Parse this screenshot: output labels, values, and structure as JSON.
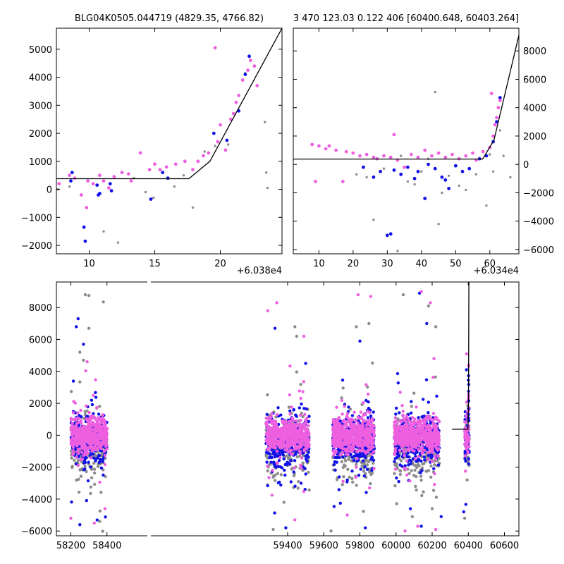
{
  "chart_data": [
    {
      "type": "scatter",
      "title": "BLG04K0505.044719 (4829.35, 4766.82)",
      "x_offset_label": "+6.038e4",
      "xlim": [
        7.5,
        24.7
      ],
      "ylim": [
        -2300,
        5750
      ],
      "xticks": [
        10,
        15,
        20
      ],
      "yticks": [
        -2000,
        -1000,
        0,
        1000,
        2000,
        3000,
        4000,
        5000
      ],
      "colors": {
        "magenta": "#ee5fe0",
        "blue": "#1010e8",
        "gray": "#8c8c8c",
        "line": "#000000"
      },
      "model_line": {
        "x": [
          7.5,
          17.6,
          19.2,
          24.7
        ],
        "y": [
          380,
          380,
          1000,
          5750
        ]
      },
      "series": [
        {
          "color": "gray",
          "points": [
            [
              7.6,
              0
            ],
            [
              8.5,
              100
            ],
            [
              11.1,
              -1500
            ],
            [
              12.2,
              -1900
            ],
            [
              13.4,
              400
            ],
            [
              14.3,
              -100
            ],
            [
              14.9,
              -300
            ],
            [
              16.5,
              100
            ],
            [
              17.2,
              500
            ],
            [
              17.9,
              -650
            ],
            [
              18.8,
              1350
            ],
            [
              19.6,
              1550
            ],
            [
              20.6,
              1600
            ],
            [
              21.9,
              4150
            ],
            [
              23.4,
              2400
            ],
            [
              23.5,
              600
            ],
            [
              23.6,
              50
            ]
          ]
        },
        {
          "color": "blue",
          "points": [
            [
              8.6,
              300
            ],
            [
              8.7,
              600
            ],
            [
              9.6,
              -1350
            ],
            [
              9.7,
              -1850
            ],
            [
              10.6,
              150
            ],
            [
              10.7,
              -200
            ],
            [
              10.8,
              -150
            ],
            [
              11.6,
              200
            ],
            [
              11.7,
              -50
            ],
            [
              14.7,
              -350
            ],
            [
              15.6,
              600
            ],
            [
              16.0,
              400
            ],
            [
              19.5,
              2000
            ],
            [
              20.5,
              1750
            ],
            [
              21.4,
              2800
            ],
            [
              21.9,
              4100
            ],
            [
              22.2,
              4750
            ]
          ]
        },
        {
          "color": "magenta",
          "points": [
            [
              7.7,
              200
            ],
            [
              8.5,
              500
            ],
            [
              8.9,
              400
            ],
            [
              9.4,
              -200
            ],
            [
              9.8,
              -650
            ],
            [
              9.9,
              300
            ],
            [
              10.3,
              200
            ],
            [
              10.8,
              500
            ],
            [
              11.1,
              300
            ],
            [
              11.5,
              50
            ],
            [
              11.9,
              450
            ],
            [
              12.5,
              600
            ],
            [
              13.0,
              550
            ],
            [
              13.2,
              300
            ],
            [
              13.9,
              1300
            ],
            [
              14.6,
              700
            ],
            [
              15.0,
              900
            ],
            [
              15.4,
              700
            ],
            [
              15.9,
              800
            ],
            [
              16.6,
              900
            ],
            [
              17.3,
              1000
            ],
            [
              17.9,
              700
            ],
            [
              18.3,
              1000
            ],
            [
              18.7,
              1200
            ],
            [
              19.1,
              1300
            ],
            [
              19.6,
              5050
            ],
            [
              19.8,
              1700
            ],
            [
              20.0,
              2300
            ],
            [
              20.4,
              1400
            ],
            [
              20.8,
              2500
            ],
            [
              21.0,
              2700
            ],
            [
              21.2,
              3100
            ],
            [
              21.4,
              3350
            ],
            [
              21.7,
              3900
            ],
            [
              22.1,
              4250
            ],
            [
              22.3,
              4600
            ],
            [
              22.6,
              4400
            ],
            [
              22.8,
              3700
            ]
          ]
        }
      ]
    },
    {
      "type": "scatter",
      "title": "3 470 123.03 0.122 406 [60400.648, 60403.264]",
      "x_offset_label": "+6.034e4",
      "xlim": [
        2.5,
        68.5
      ],
      "ylim": [
        -6300,
        9600
      ],
      "xticks": [
        10,
        20,
        30,
        40,
        50,
        60
      ],
      "yticks": [
        -6000,
        -4000,
        -2000,
        0,
        2000,
        4000,
        6000,
        8000
      ],
      "model_line": {
        "x": [
          2.5,
          57.9,
          61.2,
          68.5
        ],
        "y": [
          380,
          380,
          1700,
          9100
        ]
      },
      "series": [
        {
          "color": "gray",
          "points": [
            [
              21,
              -700
            ],
            [
              24,
              -900
            ],
            [
              26,
              -3900
            ],
            [
              29,
              -300
            ],
            [
              33,
              -6100
            ],
            [
              34,
              600
            ],
            [
              36,
              -1200
            ],
            [
              38,
              -1400
            ],
            [
              40,
              -500
            ],
            [
              42,
              400
            ],
            [
              44,
              5100
            ],
            [
              45,
              -4200
            ],
            [
              46,
              -2000
            ],
            [
              48,
              -800
            ],
            [
              51,
              -1500
            ],
            [
              53,
              -1800
            ],
            [
              56,
              -700
            ],
            [
              59,
              -2900
            ],
            [
              60,
              700
            ],
            [
              61,
              -500
            ],
            [
              63,
              2400
            ],
            [
              64,
              600
            ],
            [
              66,
              -900
            ]
          ]
        },
        {
          "color": "blue",
          "points": [
            [
              23,
              -200
            ],
            [
              26,
              -900
            ],
            [
              28,
              -500
            ],
            [
              30,
              -5000
            ],
            [
              31,
              -4900
            ],
            [
              32,
              -400
            ],
            [
              34,
              -700
            ],
            [
              36,
              -200
            ],
            [
              38,
              -1000
            ],
            [
              39,
              -500
            ],
            [
              41,
              -2400
            ],
            [
              42,
              0
            ],
            [
              44,
              -300
            ],
            [
              46,
              -900
            ],
            [
              47,
              -1100
            ],
            [
              48,
              -1700
            ],
            [
              50,
              -100
            ],
            [
              52,
              -500
            ],
            [
              54,
              -300
            ],
            [
              57,
              400
            ],
            [
              59,
              600
            ],
            [
              61,
              1600
            ],
            [
              62,
              3000
            ],
            [
              63,
              4700
            ]
          ]
        },
        {
          "color": "magenta",
          "points": [
            [
              8,
              1400
            ],
            [
              9,
              -1200
            ],
            [
              10,
              1300
            ],
            [
              12,
              1100
            ],
            [
              13,
              1300
            ],
            [
              15,
              1000
            ],
            [
              17,
              -1200
            ],
            [
              18,
              900
            ],
            [
              20,
              800
            ],
            [
              22,
              600
            ],
            [
              24,
              700
            ],
            [
              26,
              500
            ],
            [
              27,
              400
            ],
            [
              29,
              600
            ],
            [
              31,
              500
            ],
            [
              32,
              2100
            ],
            [
              33,
              300
            ],
            [
              35,
              -200
            ],
            [
              37,
              700
            ],
            [
              39,
              500
            ],
            [
              41,
              1000
            ],
            [
              43,
              600
            ],
            [
              45,
              800
            ],
            [
              47,
              500
            ],
            [
              49,
              700
            ],
            [
              51,
              400
            ],
            [
              53,
              600
            ],
            [
              55,
              800
            ],
            [
              56,
              300
            ],
            [
              58,
              900
            ],
            [
              60,
              1200
            ],
            [
              60.5,
              5000
            ],
            [
              61,
              2000
            ],
            [
              61.5,
              2800
            ],
            [
              62,
              3300
            ],
            [
              62.5,
              4000
            ],
            [
              63,
              4500
            ]
          ]
        }
      ]
    },
    {
      "type": "scatter",
      "title": "",
      "xlim": [
        58120,
        60680
      ],
      "ylim": [
        -6300,
        9600
      ],
      "xticks": [
        58200,
        58400,
        59400,
        59600,
        59800,
        60000,
        60200,
        60400,
        60600
      ],
      "yticks": [
        -6000,
        -4000,
        -2000,
        0,
        2000,
        4000,
        6000,
        8000
      ],
      "seasons": [
        [
          58200,
          58400
        ],
        [
          59280,
          59520
        ],
        [
          59650,
          59880
        ],
        [
          59990,
          60240
        ],
        [
          60380,
          60405
        ]
      ],
      "model_line": {
        "x": [
          60310,
          60398,
          60401,
          60403.3
        ],
        "y": [
          380,
          380,
          1700,
          9600
        ]
      },
      "outliers": {
        "gray": [
          [
            58280,
            8800
          ],
          [
            58300,
            8750
          ],
          [
            58380,
            8350
          ],
          [
            58250,
            5200
          ],
          [
            58270,
            4700
          ],
          [
            58300,
            6700
          ],
          [
            59440,
            6800
          ],
          [
            59450,
            6200
          ],
          [
            59780,
            6800
          ],
          [
            59850,
            7000
          ],
          [
            60040,
            8800
          ],
          [
            60180,
            8100
          ],
          [
            60220,
            6800
          ],
          [
            60200,
            -4600
          ],
          [
            60090,
            -5100
          ],
          [
            59320,
            -5900
          ],
          [
            59640,
            -6000
          ],
          [
            60380,
            -5200
          ],
          [
            58360,
            -5400
          ]
        ],
        "blue": [
          [
            58240,
            7300
          ],
          [
            58230,
            6800
          ],
          [
            58270,
            5700
          ],
          [
            59330,
            6700
          ],
          [
            59500,
            4500
          ],
          [
            59800,
            5900
          ],
          [
            60130,
            8900
          ],
          [
            60170,
            7000
          ],
          [
            60390,
            4100
          ],
          [
            58250,
            -5600
          ],
          [
            59390,
            -5800
          ],
          [
            59830,
            -5800
          ],
          [
            60140,
            -5700
          ],
          [
            60250,
            -5100
          ],
          [
            60375,
            -4800
          ]
        ],
        "magenta": [
          [
            58290,
            4600
          ],
          [
            58330,
            -5500
          ],
          [
            59290,
            7800
          ],
          [
            59340,
            8300
          ],
          [
            59490,
            6200
          ],
          [
            59790,
            8800
          ],
          [
            59860,
            8700
          ],
          [
            60140,
            9000
          ],
          [
            60190,
            8300
          ],
          [
            60210,
            4800
          ],
          [
            58200,
            -5200
          ],
          [
            59440,
            -5300
          ],
          [
            59730,
            -5000
          ],
          [
            60050,
            -6000
          ],
          [
            60120,
            -5700
          ],
          [
            60220,
            -5900
          ],
          [
            60390,
            5100
          ]
        ]
      }
    }
  ]
}
